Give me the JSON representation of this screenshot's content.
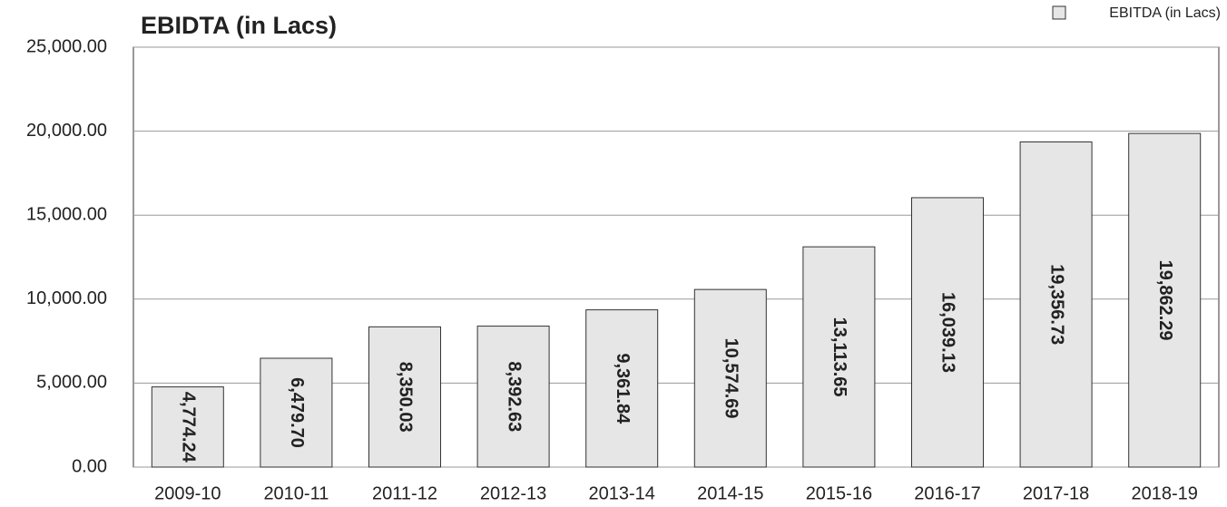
{
  "chart_data": {
    "type": "bar",
    "title": "EBIDTA (in Lacs)",
    "categories": [
      "2009-10",
      "2010-11",
      "2011-12",
      "2012-13",
      "2013-14",
      "2014-15",
      "2015-16",
      "2016-17",
      "2017-18",
      "2018-19"
    ],
    "series": [
      {
        "name": "EBITDA (in Lacs)",
        "color": "#e6e6e6",
        "values": [
          4774.24,
          6479.7,
          8350.03,
          8392.63,
          9361.84,
          10574.69,
          13113.65,
          16039.13,
          19356.73,
          19862.29
        ],
        "value_labels": [
          "4,774.24",
          "6,479.70",
          "8,350.03",
          "8,392.63",
          "9,361.84",
          "10,574.69",
          "13,113.65",
          "16,039.13",
          "19,356.73",
          "19,862.29"
        ]
      }
    ],
    "ylim": [
      0,
      25000
    ],
    "yticks": [
      {
        "value": 0,
        "label": "0.00"
      },
      {
        "value": 5000,
        "label": "5,000.00"
      },
      {
        "value": 10000,
        "label": "10,000.00"
      },
      {
        "value": 15000,
        "label": "15,000.00"
      },
      {
        "value": 20000,
        "label": "20,000.00"
      },
      {
        "value": 25000,
        "label": "25,000.00"
      }
    ],
    "grid": true,
    "legend": "top-right"
  }
}
